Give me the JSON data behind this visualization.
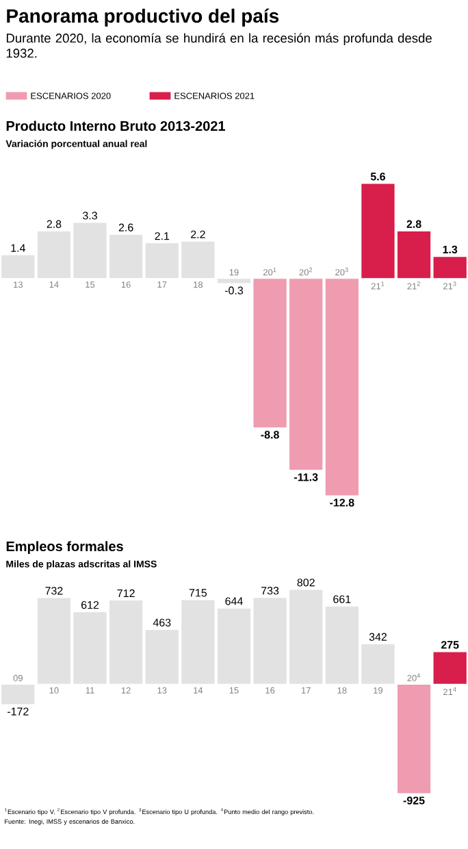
{
  "chart_data": [
    {
      "type": "bar",
      "title": "Producto Interno Bruto 2013-2021",
      "subtitle": "Variación porcentual anual real",
      "annotations": [
        "Panorama productivo del país",
        "Durante 2020, la economía se hundirá en la recesión más profunda desde 1932."
      ],
      "categories": [
        "13",
        "14",
        "15",
        "16",
        "17",
        "18",
        "19",
        "20$^{1}$",
        "20$^{2}$",
        "20$^{3}$",
        "21$^{1}$",
        "21$^{2}$",
        "21$^{3}$"
      ],
      "series": [
        {
          "color": "#e2e2e2",
          "values": [
            1.4,
            2.8,
            3.3,
            2.6,
            2.1,
            2.2,
            -0.3,
            null,
            null,
            null,
            null,
            null,
            null
          ]
        },
        {
          "name": "ESCENARIOS 2020",
          "color": "#ef9bb0",
          "values": [
            null,
            null,
            null,
            null,
            null,
            null,
            null,
            -8.8,
            -11.3,
            -12.8,
            null,
            null,
            null
          ]
        },
        {
          "name": "ESCENARIOS 2021",
          "color": "#d81e4a",
          "values": [
            null,
            null,
            null,
            null,
            null,
            null,
            null,
            null,
            null,
            null,
            5.6,
            2.8,
            1.3
          ]
        }
      ],
      "data_labels": true,
      "legend": "top left"
    },
    {
      "type": "bar",
      "title": "Empleos formales",
      "subtitle": "Miles de plazas adscritas al IMSS",
      "annotations": [
        "$^{1}$Escenario tipo V. $^{2}$Escenario tipo V profunda. $^{3}$Escenario tipo U profunda. $^{4}$Punto medio del rango previsto.",
        "Fuente: Inegi, IMSS y escenarios de Banxico."
      ],
      "categories": [
        "09",
        "10",
        "11",
        "12",
        "13",
        "14",
        "15",
        "16",
        "17",
        "18",
        "19",
        "20$^{4}$",
        "21$^{4}$"
      ],
      "series": [
        {
          "color": "#e2e2e2",
          "values": [
            -172,
            732,
            612,
            712,
            463,
            715,
            644,
            733,
            802,
            661,
            342,
            null,
            null
          ]
        },
        {
          "color": "#ef9bb0",
          "values": [
            null,
            null,
            null,
            null,
            null,
            null,
            null,
            null,
            null,
            null,
            null,
            -925,
            null
          ]
        },
        {
          "color": "#d81e4a",
          "values": [
            null,
            null,
            null,
            null,
            null,
            null,
            null,
            null,
            null,
            null,
            null,
            null,
            275
          ]
        }
      ],
      "data_labels": true
    }
  ]
}
